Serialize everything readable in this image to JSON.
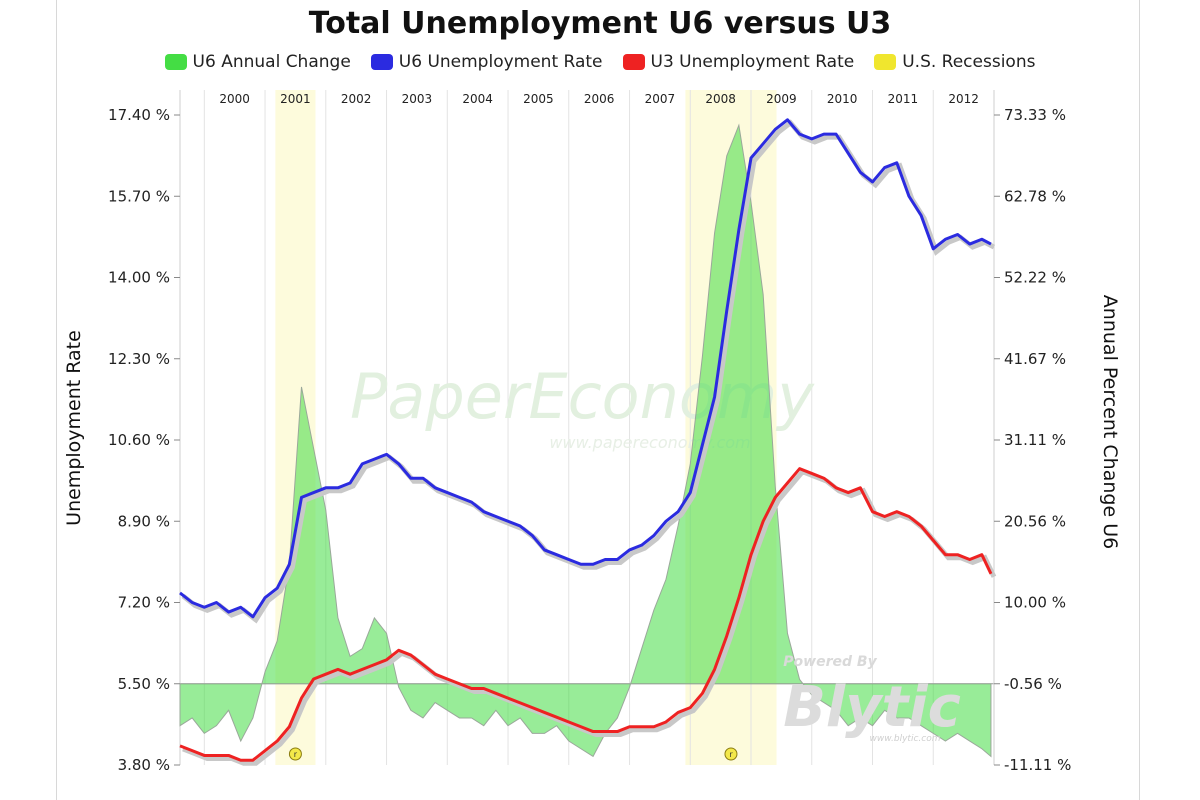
{
  "chart_data": {
    "type": "line",
    "title": "Total Unemployment U6 versus U3",
    "legend": [
      {
        "label": "U6 Annual Change",
        "color": "#44dd44"
      },
      {
        "label": "U6 Unemployment Rate",
        "color": "#2b2be0"
      },
      {
        "label": "U3 Unemployment Rate",
        "color": "#ee2222"
      },
      {
        "label": "U.S. Recessions",
        "color": "#f0e62e"
      }
    ],
    "legend_position": "top",
    "ylabel_left": "Unemployment Rate",
    "ylabel_right": "Annual Percent Change U6",
    "yticks_left": [
      "17.40 %",
      "15.70 %",
      "14.00 %",
      "12.30 %",
      "10.60 %",
      "8.90 %",
      "7.20 %",
      "5.50 %",
      "3.80 %"
    ],
    "yticks_right": [
      "73.33 %",
      "62.78 %",
      "52.22 %",
      "41.67 %",
      "31.11 %",
      "20.56 %",
      "10.00 %",
      "-0.56 %",
      "-11.11 %"
    ],
    "ylim_left": [
      3.8,
      17.4
    ],
    "ylim_right": [
      -11.11,
      73.33
    ],
    "year_labels": [
      "2000",
      "2001",
      "2002",
      "2003",
      "2004",
      "2005",
      "2006",
      "2007",
      "2008",
      "2009",
      "2010",
      "2011",
      "2012"
    ],
    "x_range": [
      1999.6,
      2013.0
    ],
    "recessions": [
      {
        "start": 2001.17,
        "end": 2001.83,
        "marker": "r"
      },
      {
        "start": 2007.92,
        "end": 2009.42,
        "marker": "r"
      }
    ],
    "series": [
      {
        "name": "U6 Unemployment Rate",
        "color": "#2b2be0",
        "x": [
          1999.6,
          1999.8,
          2000.0,
          2000.2,
          2000.4,
          2000.6,
          2000.8,
          2001.0,
          2001.2,
          2001.4,
          2001.6,
          2001.8,
          2002.0,
          2002.2,
          2002.4,
          2002.6,
          2002.8,
          2003.0,
          2003.2,
          2003.4,
          2003.6,
          2003.8,
          2004.0,
          2004.2,
          2004.4,
          2004.6,
          2004.8,
          2005.0,
          2005.2,
          2005.4,
          2005.6,
          2005.8,
          2006.0,
          2006.2,
          2006.4,
          2006.6,
          2006.8,
          2007.0,
          2007.2,
          2007.4,
          2007.6,
          2007.8,
          2008.0,
          2008.2,
          2008.4,
          2008.6,
          2008.8,
          2009.0,
          2009.2,
          2009.4,
          2009.6,
          2009.8,
          2010.0,
          2010.2,
          2010.4,
          2010.6,
          2010.8,
          2011.0,
          2011.2,
          2011.4,
          2011.6,
          2011.8,
          2012.0,
          2012.2,
          2012.4,
          2012.6,
          2012.8,
          2012.95
        ],
        "values": [
          7.4,
          7.2,
          7.1,
          7.2,
          7.0,
          7.1,
          6.9,
          7.3,
          7.5,
          8.0,
          9.4,
          9.5,
          9.6,
          9.6,
          9.7,
          10.1,
          10.2,
          10.3,
          10.1,
          9.8,
          9.8,
          9.6,
          9.5,
          9.4,
          9.3,
          9.1,
          9.0,
          8.9,
          8.8,
          8.6,
          8.3,
          8.2,
          8.1,
          8.0,
          8.0,
          8.1,
          8.1,
          8.3,
          8.4,
          8.6,
          8.9,
          9.1,
          9.5,
          10.5,
          11.5,
          13.3,
          15.0,
          16.5,
          16.8,
          17.1,
          17.3,
          17.0,
          16.9,
          17.0,
          17.0,
          16.6,
          16.2,
          16.0,
          16.3,
          16.4,
          15.7,
          15.3,
          14.6,
          14.8,
          14.9,
          14.7,
          14.8,
          14.7
        ]
      },
      {
        "name": "U3 Unemployment Rate",
        "color": "#ee2222",
        "x": [
          1999.6,
          1999.8,
          2000.0,
          2000.2,
          2000.4,
          2000.6,
          2000.8,
          2001.0,
          2001.2,
          2001.4,
          2001.6,
          2001.8,
          2002.0,
          2002.2,
          2002.4,
          2002.6,
          2002.8,
          2003.0,
          2003.2,
          2003.4,
          2003.6,
          2003.8,
          2004.0,
          2004.2,
          2004.4,
          2004.6,
          2004.8,
          2005.0,
          2005.2,
          2005.4,
          2005.6,
          2005.8,
          2006.0,
          2006.2,
          2006.4,
          2006.6,
          2006.8,
          2007.0,
          2007.2,
          2007.4,
          2007.6,
          2007.8,
          2008.0,
          2008.2,
          2008.4,
          2008.6,
          2008.8,
          2009.0,
          2009.2,
          2009.4,
          2009.6,
          2009.8,
          2010.0,
          2010.2,
          2010.4,
          2010.6,
          2010.8,
          2011.0,
          2011.2,
          2011.4,
          2011.6,
          2011.8,
          2012.0,
          2012.2,
          2012.4,
          2012.6,
          2012.8,
          2012.95
        ],
        "values": [
          4.2,
          4.1,
          4.0,
          4.0,
          4.0,
          3.9,
          3.9,
          4.1,
          4.3,
          4.6,
          5.2,
          5.6,
          5.7,
          5.8,
          5.7,
          5.8,
          5.9,
          6.0,
          6.2,
          6.1,
          5.9,
          5.7,
          5.6,
          5.5,
          5.4,
          5.4,
          5.3,
          5.2,
          5.1,
          5.0,
          4.9,
          4.8,
          4.7,
          4.6,
          4.5,
          4.5,
          4.5,
          4.6,
          4.6,
          4.6,
          4.7,
          4.9,
          5.0,
          5.3,
          5.8,
          6.5,
          7.3,
          8.2,
          8.9,
          9.4,
          9.7,
          10.0,
          9.9,
          9.8,
          9.6,
          9.5,
          9.6,
          9.1,
          9.0,
          9.1,
          9.0,
          8.8,
          8.5,
          8.2,
          8.2,
          8.1,
          8.2,
          7.8
        ]
      },
      {
        "name": "U6 Annual Change",
        "color": "#44dd44",
        "x": [
          1999.6,
          1999.8,
          2000.0,
          2000.2,
          2000.4,
          2000.6,
          2000.8,
          2001.0,
          2001.2,
          2001.4,
          2001.6,
          2001.8,
          2002.0,
          2002.2,
          2002.4,
          2002.6,
          2002.8,
          2003.0,
          2003.2,
          2003.4,
          2003.6,
          2003.8,
          2004.0,
          2004.2,
          2004.4,
          2004.6,
          2004.8,
          2005.0,
          2005.2,
          2005.4,
          2005.6,
          2005.8,
          2006.0,
          2006.2,
          2006.4,
          2006.6,
          2006.8,
          2007.0,
          2007.2,
          2007.4,
          2007.6,
          2007.8,
          2008.0,
          2008.2,
          2008.4,
          2008.6,
          2008.8,
          2009.0,
          2009.2,
          2009.4,
          2009.6,
          2009.8,
          2010.0,
          2010.2,
          2010.4,
          2010.6,
          2010.8,
          2011.0,
          2011.2,
          2011.4,
          2011.6,
          2011.8,
          2012.0,
          2012.2,
          2012.4,
          2012.6,
          2012.8,
          2012.95
        ],
        "values": [
          -6,
          -5,
          -7,
          -6,
          -4,
          -8,
          -5,
          1,
          5,
          15,
          38,
          30,
          22,
          8,
          3,
          4,
          8,
          6,
          -1,
          -4,
          -5,
          -3,
          -4,
          -5,
          -5,
          -6,
          -4,
          -6,
          -5,
          -7,
          -7,
          -6,
          -8,
          -9,
          -10,
          -7,
          -5,
          -1,
          4,
          9,
          13,
          20,
          28,
          42,
          58,
          68,
          72,
          62,
          50,
          25,
          6,
          0,
          -2,
          -3,
          -4,
          -6,
          -5,
          -6,
          -4,
          -5,
          -5,
          -6,
          -7,
          -8,
          -7,
          -8,
          -9,
          -10
        ]
      }
    ]
  },
  "watermark": {
    "main": "PaperEconomy",
    "url": "www.papereconomy.com"
  },
  "branding": {
    "powered": "Powered By",
    "name": "Blytic",
    "url": "www.blytic.com"
  }
}
